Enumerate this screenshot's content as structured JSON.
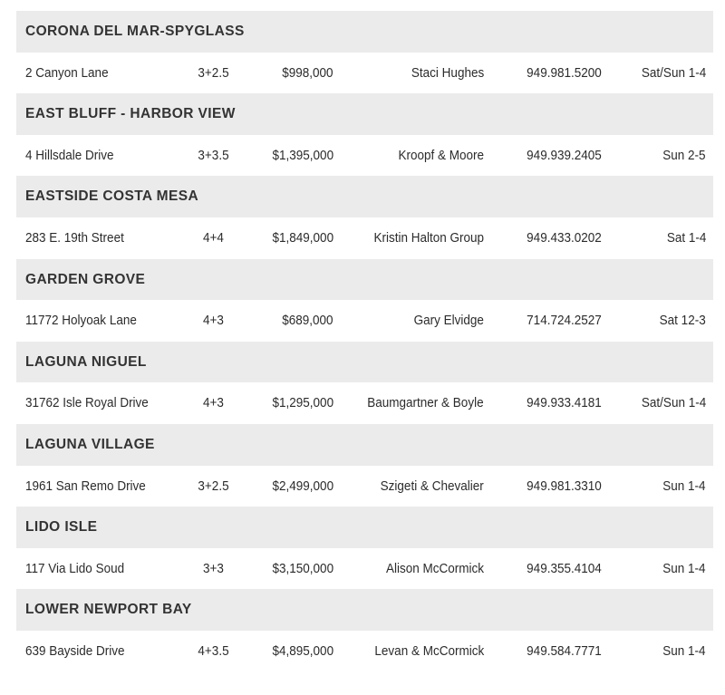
{
  "sections": [
    {
      "title": "CORONA DEL MAR-SPYGLASS",
      "listing": {
        "address": "2 Canyon Lane",
        "beds_baths": "3+2.5",
        "price": "$998,000",
        "agent": "Staci Hughes",
        "phone": "949.981.5200",
        "hours": "Sat/Sun 1-4"
      }
    },
    {
      "title": "EAST BLUFF - HARBOR VIEW",
      "listing": {
        "address": "4 Hillsdale Drive",
        "beds_baths": "3+3.5",
        "price": "$1,395,000",
        "agent": "Kroopf & Moore",
        "phone": "949.939.2405",
        "hours": "Sun 2-5"
      }
    },
    {
      "title": "EASTSIDE COSTA MESA",
      "listing": {
        "address": "283 E. 19th Street",
        "beds_baths": "4+4",
        "price": "$1,849,000",
        "agent": "Kristin Halton Group",
        "phone": "949.433.0202",
        "hours": "Sat 1-4"
      }
    },
    {
      "title": "GARDEN GROVE",
      "listing": {
        "address": "11772 Holyoak Lane",
        "beds_baths": "4+3",
        "price": "$689,000",
        "agent": "Gary Elvidge",
        "phone": "714.724.2527",
        "hours": "Sat 12-3"
      }
    },
    {
      "title": "LAGUNA NIGUEL",
      "listing": {
        "address": "31762 Isle Royal Drive",
        "beds_baths": "4+3",
        "price": "$1,295,000",
        "agent": "Baumgartner & Boyle",
        "phone": "949.933.4181",
        "hours": "Sat/Sun 1-4"
      }
    },
    {
      "title": "LAGUNA VILLAGE",
      "listing": {
        "address": "1961 San Remo Drive",
        "beds_baths": "3+2.5",
        "price": "$2,499,000",
        "agent": "Szigeti & Chevalier",
        "phone": "949.981.3310",
        "hours": "Sun 1-4"
      }
    },
    {
      "title": "LIDO ISLE",
      "listing": {
        "address": "117 Via Lido Soud",
        "beds_baths": "3+3",
        "price": "$3,150,000",
        "agent": "Alison McCormick",
        "phone": "949.355.4104",
        "hours": "Sun 1-4"
      }
    },
    {
      "title": "LOWER NEWPORT BAY",
      "listing": {
        "address": "639 Bayside Drive",
        "beds_baths": "4+3.5",
        "price": "$4,895,000",
        "agent": "Levan & McCormick",
        "phone": "949.584.7771",
        "hours": "Sun 1-4"
      }
    }
  ]
}
